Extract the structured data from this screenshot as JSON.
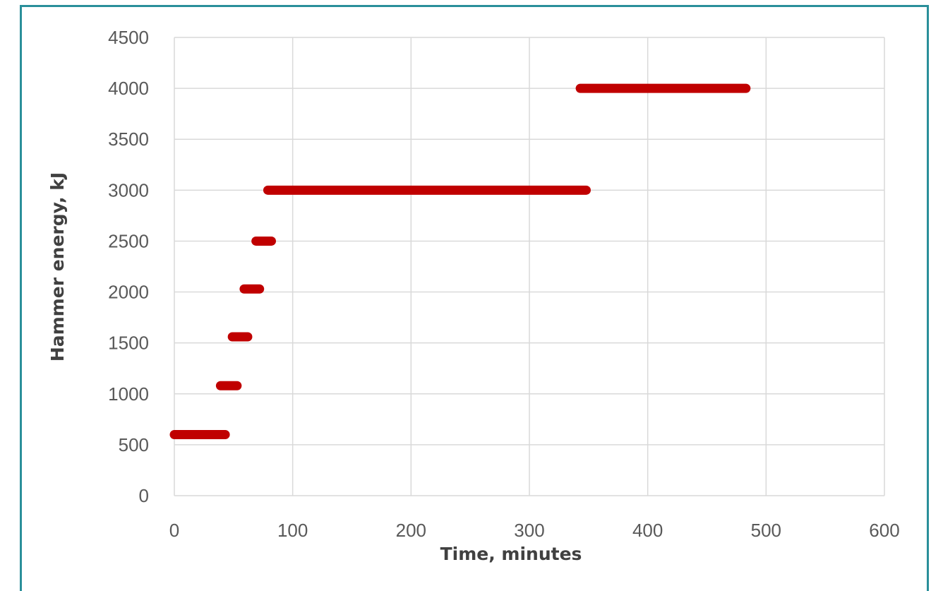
{
  "chart_data": {
    "type": "scatter",
    "title": "",
    "xlabel": "Time, minutes",
    "ylabel": "Hammer energy, kJ",
    "xlim": [
      0,
      600
    ],
    "ylim": [
      0,
      4500
    ],
    "xticks": [
      0,
      100,
      200,
      300,
      400,
      500,
      600
    ],
    "yticks": [
      0,
      500,
      1000,
      1500,
      2000,
      2500,
      3000,
      3500,
      4000,
      4500
    ],
    "grid": true,
    "legend": "none",
    "series": [
      {
        "color": "#c00000",
        "segments": [
          {
            "x_start": 0,
            "x_end": 43,
            "y": 600
          },
          {
            "x_start": 39,
            "x_end": 53,
            "y": 1080
          },
          {
            "x_start": 49,
            "x_end": 62,
            "y": 1560
          },
          {
            "x_start": 59,
            "x_end": 72,
            "y": 2030
          },
          {
            "x_start": 69,
            "x_end": 82,
            "y": 2500
          },
          {
            "x_start": 79,
            "x_end": 348,
            "y": 3000
          },
          {
            "x_start": 343,
            "x_end": 483,
            "y": 4000
          }
        ]
      }
    ]
  }
}
